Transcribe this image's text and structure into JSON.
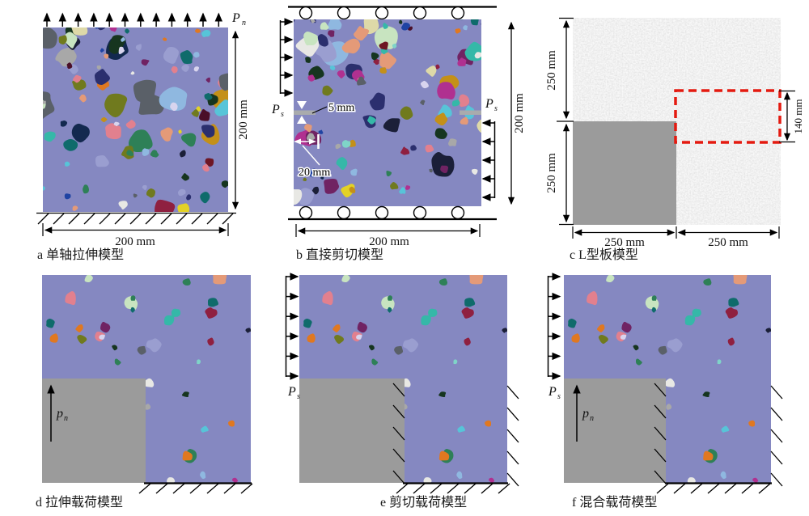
{
  "panels": {
    "a": {
      "caption": "a 单轴拉伸模型",
      "height_dim": "200 mm",
      "width_dim": "200 mm",
      "load": {
        "base": "P",
        "sub": "n"
      }
    },
    "b": {
      "caption": "b 直接剪切模型",
      "height_dim": "200 mm",
      "width_dim": "200 mm",
      "load_left": {
        "base": "P",
        "sub": "s"
      },
      "load_right": {
        "base": "P",
        "sub": "s"
      },
      "notch_thickness": "5 mm",
      "notch_length": "20 mm"
    },
    "c": {
      "caption": "c L型板模型",
      "left_top_dim": "250 mm",
      "left_bottom_dim": "250 mm",
      "bottom_left_dim": "250 mm",
      "bottom_right_dim": "250 mm",
      "window_dim": "140 mm"
    },
    "d": {
      "caption": "d 拉伸载荷模型",
      "load": {
        "base": "p",
        "sub": "n"
      }
    },
    "e": {
      "caption": "e 剪切载荷模型",
      "load": {
        "base": "P",
        "sub": "s"
      }
    },
    "f": {
      "caption": "f 混合载荷模型",
      "shear": {
        "base": "P",
        "sub": "s"
      },
      "normal": {
        "base": "p",
        "sub": "n"
      }
    }
  },
  "colors": {
    "matrix": "#8588c1",
    "cutout": "#9b9b9b",
    "aggregate": "#dcdcdc",
    "red_dashed": "#e41a10",
    "notch": "#a9abad",
    "ink": "#000000",
    "annotation_white": "#ffffff",
    "palette": [
      "#1f43a3",
      "#2b2f6e",
      "#13294f",
      "#1b1f38",
      "#35b8a8",
      "#7fd4c8",
      "#57c4d8",
      "#0f6b6b",
      "#b03090",
      "#8f2040",
      "#6e1624",
      "#702363",
      "#e3d226",
      "#c49018",
      "#e07820",
      "#707a1e",
      "#16351f",
      "#2e8057",
      "#e2808e",
      "#e49a78",
      "#ded9a8",
      "#9a9ed0",
      "#8fb8e0",
      "#a8a8a8",
      "#5a6068",
      "#4a0f28",
      "#e8e8e4",
      "#c8e4c0",
      "#d8d4ee"
    ]
  }
}
